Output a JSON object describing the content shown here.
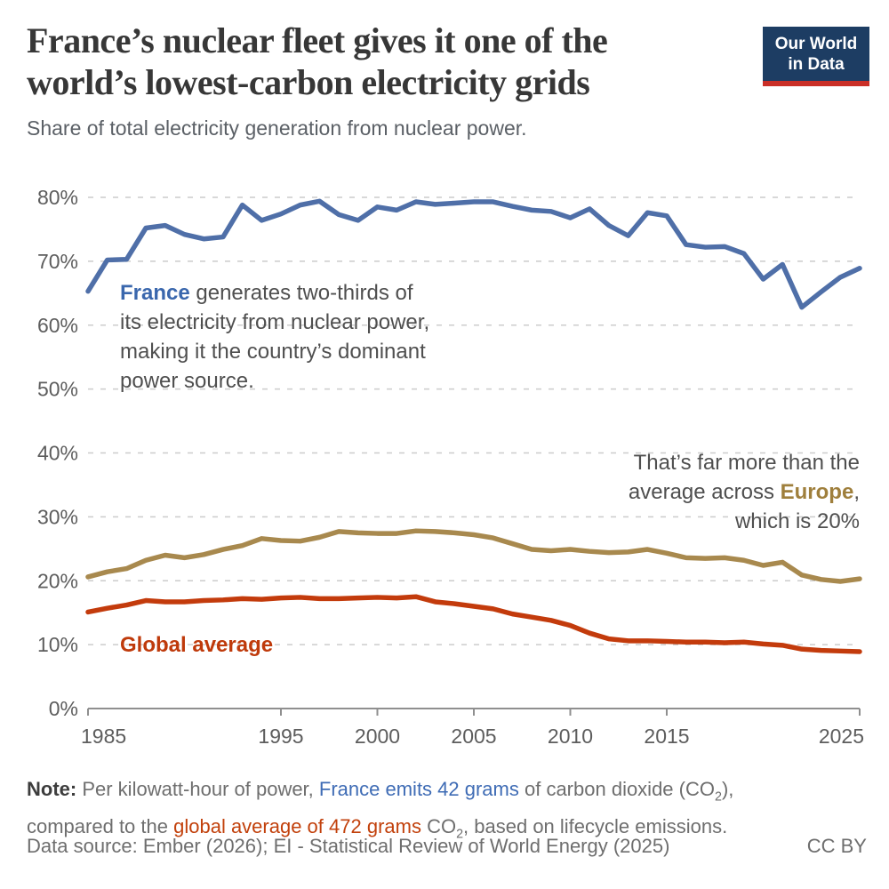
{
  "header": {
    "title_line1": "France’s nuclear fleet gives it one of the",
    "title_line2": "world’s lowest-carbon electricity grids",
    "subtitle": "Share of total electricity generation from nuclear power.",
    "logo": {
      "line1": "Our World",
      "line2": "in Data"
    }
  },
  "colors": {
    "france_line": "#4f6fa8",
    "europe_line": "#a8894e",
    "global_line": "#c33b0c",
    "logo_bg": "#1d3d63",
    "logo_stripe": "#ca2f27",
    "gridline": "#cccccc",
    "axis": "#8f8f8f",
    "tick_text": "#5d5d5d"
  },
  "annotations": {
    "france": {
      "bold": "France",
      "line1_rest": " generates two-thirds of",
      "line2": "its electricity from nuclear power,",
      "line3": "making it the country’s dominant",
      "line4": "power source."
    },
    "europe": {
      "line1": "That’s far more than the",
      "line2_pre": "average across ",
      "bold": "Europe",
      "line2_post": ",",
      "line3": "which is 20%"
    },
    "global_label": "Global average"
  },
  "footer": {
    "note": {
      "label": "Note:",
      "l1a": " Per kilowatt-hour of power, ",
      "l1_blue": "France emits 42 grams",
      "l1b": " of carbon dioxide (CO",
      "sub1": "2",
      "l1c": "),",
      "l2a": "compared to the ",
      "l2_red": "global average of 472 grams",
      "l2b": " CO",
      "sub2": "2",
      "l2c": ", based on lifecycle emissions."
    },
    "source": {
      "label": "Data source:",
      "text": " Ember (2026); EI - Statistical Review of World Energy (2025)",
      "license": "CC BY"
    }
  },
  "chart_data": {
    "type": "line",
    "title": "Share of total electricity generation from nuclear power",
    "xlabel": "",
    "ylabel": "",
    "xlim": [
      1985,
      2025
    ],
    "ylim": [
      0,
      80
    ],
    "y_ticks": [
      0,
      10,
      20,
      30,
      40,
      50,
      60,
      70,
      80
    ],
    "y_tick_suffix": "%",
    "x_ticks": [
      1985,
      1995,
      2000,
      2005,
      2010,
      2015,
      2025
    ],
    "grid": "horizontal-dashed",
    "legend_position": "inline-annotations",
    "x": [
      1985,
      1986,
      1987,
      1988,
      1989,
      1990,
      1991,
      1992,
      1993,
      1994,
      1995,
      1996,
      1997,
      1998,
      1999,
      2000,
      2001,
      2002,
      2003,
      2004,
      2005,
      2006,
      2007,
      2008,
      2009,
      2010,
      2011,
      2012,
      2013,
      2014,
      2015,
      2016,
      2017,
      2018,
      2019,
      2020,
      2021,
      2022,
      2023,
      2024,
      2025
    ],
    "series": [
      {
        "name": "France",
        "color": "#4f6fa8",
        "values": [
          65.3,
          70.2,
          70.3,
          75.2,
          75.6,
          74.2,
          73.5,
          73.8,
          78.8,
          76.4,
          77.4,
          78.8,
          79.4,
          77.3,
          76.4,
          78.5,
          78.0,
          79.3,
          78.9,
          79.1,
          79.3,
          79.3,
          78.6,
          78.0,
          77.8,
          76.8,
          78.2,
          75.6,
          74.0,
          77.6,
          77.1,
          72.6,
          72.2,
          72.3,
          71.2,
          67.2,
          69.5,
          62.8,
          65.2,
          67.5,
          68.9
        ]
      },
      {
        "name": "Europe",
        "color": "#a8894e",
        "values": [
          20.6,
          21.4,
          21.9,
          23.2,
          24.0,
          23.6,
          24.1,
          24.9,
          25.5,
          26.6,
          26.3,
          26.2,
          26.8,
          27.7,
          27.5,
          27.4,
          27.4,
          27.8,
          27.7,
          27.5,
          27.2,
          26.7,
          25.8,
          24.9,
          24.7,
          24.9,
          24.6,
          24.4,
          24.5,
          24.9,
          24.3,
          23.6,
          23.5,
          23.6,
          23.2,
          22.4,
          22.9,
          20.9,
          20.2,
          19.9,
          20.3
        ]
      },
      {
        "name": "Global average",
        "color": "#c33b0c",
        "values": [
          15.1,
          15.7,
          16.2,
          16.9,
          16.7,
          16.7,
          16.9,
          17.0,
          17.2,
          17.1,
          17.3,
          17.4,
          17.2,
          17.2,
          17.3,
          17.4,
          17.3,
          17.5,
          16.7,
          16.4,
          16.0,
          15.6,
          14.8,
          14.3,
          13.8,
          13.0,
          11.8,
          10.9,
          10.6,
          10.6,
          10.5,
          10.4,
          10.4,
          10.3,
          10.4,
          10.1,
          9.9,
          9.3,
          9.1,
          9.0,
          8.9
        ]
      }
    ]
  }
}
